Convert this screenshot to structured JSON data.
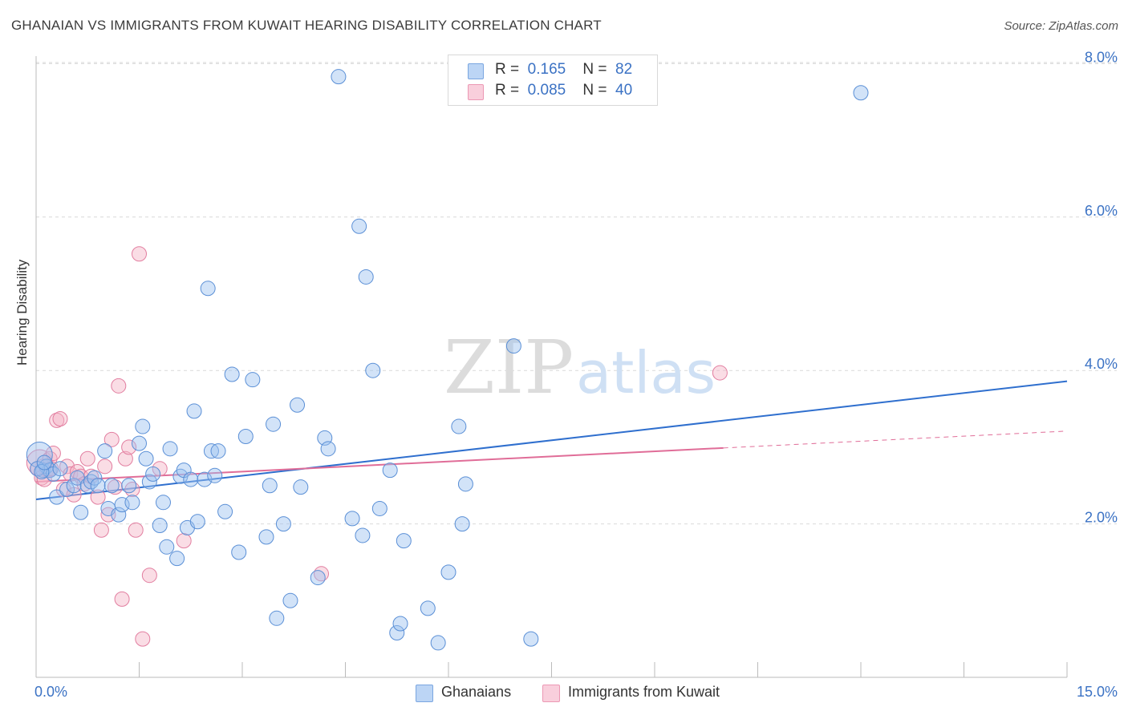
{
  "header": {
    "title": "GHANAIAN VS IMMIGRANTS FROM KUWAIT HEARING DISABILITY CORRELATION CHART",
    "source": "Source: ZipAtlas.com"
  },
  "watermark": {
    "zip": "ZIP",
    "atlas": "atlas"
  },
  "legend_top": {
    "rows": [
      {
        "r_label": "R =",
        "r_value": "0.165",
        "n_label": "N =",
        "n_value": "82",
        "color": "#9cc0ef"
      },
      {
        "r_label": "R =",
        "r_value": "0.085",
        "n_label": "N =",
        "n_value": "40",
        "color": "#f4b3c6"
      }
    ]
  },
  "legend_bottom": {
    "items": [
      {
        "label": "Ghanaians",
        "color": "#9cc0ef"
      },
      {
        "label": "Immigrants from Kuwait",
        "color": "#f4b3c6"
      }
    ]
  },
  "chart_data": {
    "type": "scatter",
    "title": "GHANAIAN VS IMMIGRANTS FROM KUWAIT HEARING DISABILITY CORRELATION CHART",
    "xlabel": "",
    "ylabel": "Hearing Disability",
    "xlim": [
      0,
      15
    ],
    "ylim": [
      0,
      8.5
    ],
    "x_tick_labels": [
      "0.0%",
      "15.0%"
    ],
    "y_ticks": [
      2,
      4,
      6,
      8
    ],
    "y_tick_labels": [
      "2.0%",
      "4.0%",
      "6.0%",
      "8.0%"
    ],
    "grid": true,
    "accent_text_color": "#3b72c4",
    "series": [
      {
        "name": "Ghanaians",
        "color": "#9cc0ef",
        "edge_color": "#5a8fd6",
        "trend_color": "#2f6fce",
        "trend": {
          "x": [
            0,
            15
          ],
          "y": [
            2.32,
            3.86
          ]
        },
        "points": [
          [
            0.05,
            2.9
          ],
          [
            0.1,
            2.7
          ],
          [
            0.15,
            2.75
          ],
          [
            0.2,
            2.7
          ],
          [
            0.25,
            2.65
          ],
          [
            0.3,
            2.35
          ],
          [
            0.35,
            2.72
          ],
          [
            0.45,
            2.45
          ],
          [
            0.55,
            2.5
          ],
          [
            0.6,
            2.6
          ],
          [
            0.65,
            2.15
          ],
          [
            0.75,
            2.5
          ],
          [
            0.8,
            2.55
          ],
          [
            0.85,
            2.6
          ],
          [
            0.9,
            2.5
          ],
          [
            1.0,
            2.95
          ],
          [
            1.05,
            2.2
          ],
          [
            1.1,
            2.5
          ],
          [
            1.2,
            2.12
          ],
          [
            1.25,
            2.25
          ],
          [
            1.35,
            2.5
          ],
          [
            1.4,
            2.28
          ],
          [
            1.5,
            3.05
          ],
          [
            1.55,
            3.27
          ],
          [
            1.6,
            2.85
          ],
          [
            1.65,
            2.55
          ],
          [
            1.7,
            2.65
          ],
          [
            1.8,
            1.98
          ],
          [
            1.85,
            2.28
          ],
          [
            1.9,
            1.7
          ],
          [
            1.95,
            2.98
          ],
          [
            2.05,
            1.55
          ],
          [
            2.1,
            2.62
          ],
          [
            2.15,
            2.7
          ],
          [
            2.2,
            1.95
          ],
          [
            2.25,
            2.58
          ],
          [
            2.3,
            3.47
          ],
          [
            2.35,
            2.03
          ],
          [
            2.45,
            2.58
          ],
          [
            2.5,
            5.07
          ],
          [
            2.55,
            2.95
          ],
          [
            2.6,
            2.63
          ],
          [
            2.65,
            2.95
          ],
          [
            2.75,
            2.16
          ],
          [
            2.85,
            3.95
          ],
          [
            2.95,
            1.63
          ],
          [
            3.05,
            3.14
          ],
          [
            3.15,
            3.88
          ],
          [
            3.35,
            1.83
          ],
          [
            3.4,
            2.5
          ],
          [
            3.45,
            3.3
          ],
          [
            3.5,
            0.77
          ],
          [
            3.6,
            2.0
          ],
          [
            3.7,
            1.0
          ],
          [
            3.8,
            3.55
          ],
          [
            3.85,
            2.48
          ],
          [
            4.1,
            1.3
          ],
          [
            4.2,
            3.12
          ],
          [
            4.25,
            2.98
          ],
          [
            4.4,
            7.83
          ],
          [
            4.6,
            2.07
          ],
          [
            4.7,
            5.88
          ],
          [
            4.75,
            1.85
          ],
          [
            4.8,
            5.22
          ],
          [
            4.9,
            4.0
          ],
          [
            5.0,
            2.2
          ],
          [
            5.15,
            2.7
          ],
          [
            5.25,
            0.58
          ],
          [
            5.3,
            0.7
          ],
          [
            5.35,
            1.78
          ],
          [
            5.7,
            0.9
          ],
          [
            5.85,
            0.45
          ],
          [
            6.0,
            1.37
          ],
          [
            6.15,
            3.27
          ],
          [
            6.2,
            2.0
          ],
          [
            6.25,
            2.52
          ],
          [
            6.95,
            4.32
          ],
          [
            7.2,
            0.5
          ],
          [
            12.0,
            7.62
          ],
          [
            0.02,
            2.72
          ],
          [
            0.08,
            2.68
          ],
          [
            0.12,
            2.8
          ]
        ]
      },
      {
        "name": "Immigrants from Kuwait",
        "color": "#f4b3c6",
        "edge_color": "#e27ea0",
        "trend_color": "#e06d98",
        "trend": {
          "x": [
            0,
            10
          ],
          "y": [
            2.55,
            2.99
          ]
        },
        "trend_extension": {
          "x": [
            10,
            15
          ],
          "y": [
            2.99,
            3.21
          ]
        },
        "points": [
          [
            0.05,
            2.8
          ],
          [
            0.1,
            2.75
          ],
          [
            0.15,
            2.7
          ],
          [
            0.2,
            2.85
          ],
          [
            0.25,
            2.92
          ],
          [
            0.3,
            3.35
          ],
          [
            0.35,
            3.37
          ],
          [
            0.4,
            2.45
          ],
          [
            0.45,
            2.75
          ],
          [
            0.5,
            2.65
          ],
          [
            0.55,
            2.38
          ],
          [
            0.6,
            2.68
          ],
          [
            0.65,
            2.62
          ],
          [
            0.7,
            2.52
          ],
          [
            0.75,
            2.85
          ],
          [
            0.8,
            2.62
          ],
          [
            0.9,
            2.35
          ],
          [
            0.95,
            1.92
          ],
          [
            1.0,
            2.75
          ],
          [
            1.05,
            2.12
          ],
          [
            1.1,
            3.1
          ],
          [
            1.15,
            2.48
          ],
          [
            1.2,
            3.8
          ],
          [
            1.25,
            1.02
          ],
          [
            1.3,
            2.85
          ],
          [
            1.35,
            3.0
          ],
          [
            1.4,
            2.45
          ],
          [
            1.45,
            1.92
          ],
          [
            1.5,
            5.52
          ],
          [
            1.55,
            0.5
          ],
          [
            1.65,
            1.33
          ],
          [
            1.8,
            2.72
          ],
          [
            2.15,
            1.78
          ],
          [
            4.15,
            1.35
          ],
          [
            9.95,
            3.97
          ],
          [
            0.02,
            2.72
          ],
          [
            0.08,
            2.6
          ],
          [
            0.12,
            2.58
          ],
          [
            0.18,
            2.7
          ],
          [
            0.22,
            2.72
          ]
        ]
      }
    ]
  }
}
